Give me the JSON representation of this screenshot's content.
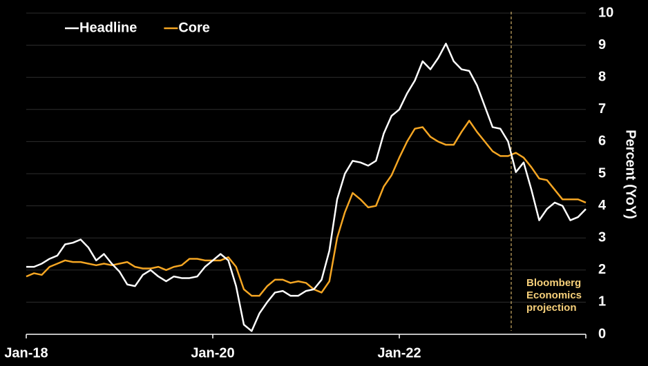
{
  "chart_data": {
    "type": "line",
    "categories": [
      "Jan-18",
      null,
      null,
      null,
      null,
      null,
      null,
      null,
      null,
      null,
      null,
      null,
      null,
      null,
      null,
      null,
      null,
      null,
      null,
      null,
      null,
      null,
      null,
      null,
      "Jan-20",
      null,
      null,
      null,
      null,
      null,
      null,
      null,
      null,
      null,
      null,
      null,
      null,
      null,
      null,
      null,
      null,
      null,
      null,
      null,
      null,
      null,
      null,
      null,
      "Jan-22",
      null,
      null,
      null,
      null,
      null,
      null,
      null,
      null,
      null,
      null,
      null,
      null,
      null,
      null,
      null,
      null,
      null,
      null,
      null,
      null,
      null,
      null,
      null,
      null
    ],
    "series": [
      {
        "name": "Headline",
        "color": "#ffffff",
        "values": [
          2.1,
          2.1,
          2.2,
          2.35,
          2.45,
          2.8,
          2.85,
          2.95,
          2.7,
          2.3,
          2.5,
          2.2,
          1.95,
          1.55,
          1.5,
          1.85,
          2.0,
          1.8,
          1.65,
          1.8,
          1.75,
          1.75,
          1.8,
          2.1,
          2.3,
          2.5,
          2.3,
          1.5,
          0.3,
          0.1,
          0.65,
          1.0,
          1.3,
          1.35,
          1.2,
          1.2,
          1.35,
          1.4,
          1.7,
          2.6,
          4.2,
          5.0,
          5.4,
          5.35,
          5.25,
          5.4,
          6.25,
          6.8,
          7.0,
          7.5,
          7.9,
          8.5,
          8.25,
          8.6,
          9.05,
          8.5,
          8.25,
          8.2,
          7.75,
          7.1,
          6.45,
          6.4,
          6.0,
          5.05,
          5.35,
          4.5,
          3.55,
          3.9,
          4.1,
          4.0,
          3.55,
          3.65,
          3.9
        ]
      },
      {
        "name": "Core",
        "color": "#f5a623",
        "values": [
          1.8,
          1.9,
          1.85,
          2.1,
          2.2,
          2.3,
          2.25,
          2.25,
          2.2,
          2.15,
          2.2,
          2.15,
          2.2,
          2.25,
          2.1,
          2.05,
          2.05,
          2.1,
          2.0,
          2.1,
          2.15,
          2.35,
          2.35,
          2.3,
          2.3,
          2.3,
          2.4,
          2.1,
          1.4,
          1.2,
          1.2,
          1.5,
          1.7,
          1.7,
          1.6,
          1.65,
          1.6,
          1.4,
          1.3,
          1.65,
          3.0,
          3.8,
          4.4,
          4.2,
          3.95,
          4.0,
          4.6,
          4.95,
          5.5,
          6.0,
          6.4,
          6.45,
          6.15,
          6.0,
          5.9,
          5.9,
          6.3,
          6.65,
          6.3,
          6.0,
          5.7,
          5.55,
          5.55,
          5.65,
          5.5,
          5.2,
          4.85,
          4.8,
          4.5,
          4.2,
          4.2,
          4.2,
          4.1
        ]
      }
    ],
    "xticks": [
      0,
      24,
      48,
      72
    ],
    "ylim": [
      0,
      10
    ],
    "yticks": [
      0,
      1,
      2,
      3,
      4,
      5,
      6,
      7,
      8,
      9,
      10
    ],
    "y_label": "Percent (YoY)",
    "grid": true,
    "legend": "top-left",
    "projection": {
      "x": 62.4,
      "lines": [
        "Bloomberg",
        "Economics",
        "projection"
      ],
      "color": "#f7d07a"
    }
  }
}
